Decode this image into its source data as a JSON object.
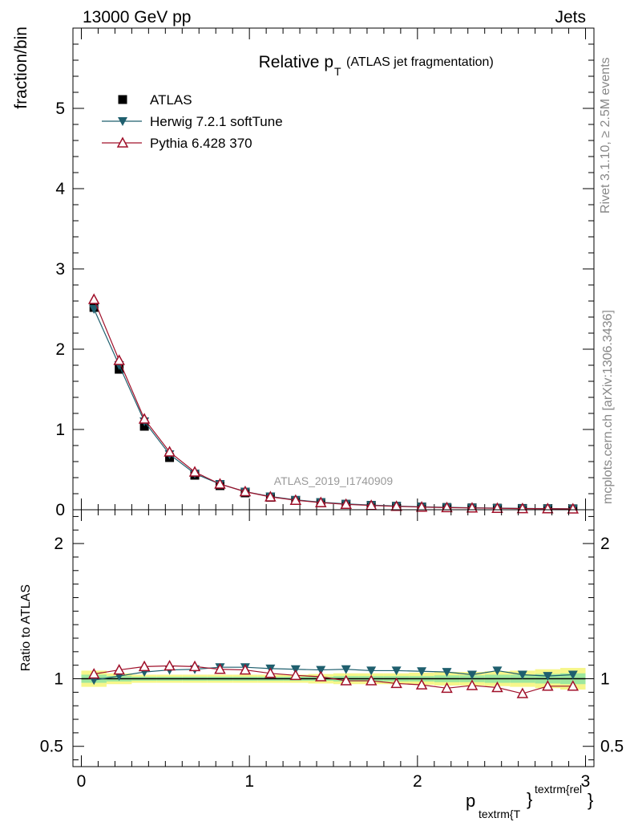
{
  "header": {
    "left_label": "13000 GeV pp",
    "right_label": "Jets"
  },
  "side_labels": {
    "rivet": "Rivet 3.1.10, ≥ 2.5M events",
    "mcplots": "mcplots.cern.ch [arXiv:1306.3436]"
  },
  "chart_data": [
    {
      "type": "scatter",
      "panel": "main",
      "title": "Relative p",
      "title_sub": "T",
      "title_rest": "(ATLAS jet fragmentation)",
      "ylabel": "fraction/bin",
      "watermark": "ATLAS_2019_I1740909",
      "xlim": [
        -0.05,
        3.05
      ],
      "ylim": [
        0,
        6.0
      ],
      "y_ticks": [
        0,
        1,
        2,
        3,
        4,
        5
      ],
      "y_tick_labels": [
        "0",
        "1",
        "2",
        "3",
        "4",
        "5"
      ],
      "x": [
        0.075,
        0.225,
        0.375,
        0.525,
        0.675,
        0.825,
        0.975,
        1.125,
        1.275,
        1.425,
        1.575,
        1.725,
        1.875,
        2.025,
        2.175,
        2.325,
        2.475,
        2.625,
        2.775,
        2.925
      ],
      "legend_position": "top-left",
      "series": [
        {
          "name": "ATLAS",
          "marker": "square",
          "color": "#000000",
          "values": [
            2.52,
            1.75,
            1.04,
            0.65,
            0.43,
            0.3,
            0.21,
            0.155,
            0.115,
            0.088,
            0.068,
            0.054,
            0.043,
            0.034,
            0.028,
            0.023,
            0.019,
            0.016,
            0.013,
            0.011
          ]
        },
        {
          "name": "Herwig 7.2.1 softTune",
          "marker": "triangle-down",
          "color": "#1f5f6e",
          "values": [
            2.5,
            1.8,
            1.1,
            0.69,
            0.45,
            0.32,
            0.225,
            0.165,
            0.123,
            0.094,
            0.073,
            0.058,
            0.046,
            0.036,
            0.03,
            0.024,
            0.02,
            0.017,
            0.014,
            0.012
          ]
        },
        {
          "name": "Pythia 6.428 370",
          "marker": "triangle-up-open",
          "color": "#a0102a",
          "values": [
            2.62,
            1.86,
            1.13,
            0.72,
            0.47,
            0.32,
            0.225,
            0.16,
            0.118,
            0.089,
            0.067,
            0.053,
            0.042,
            0.033,
            0.026,
            0.022,
            0.018,
            0.014,
            0.0125,
            0.01
          ]
        }
      ]
    },
    {
      "type": "scatter",
      "panel": "ratio",
      "ylabel": "Ratio to ATLAS",
      "xlabel_main": "p",
      "xlabel_sub": "textrm{T",
      "xlabel_sub_close": "}",
      "xlabel_sup": "textrm{rel",
      "xlabel_sup_close": "}",
      "xlim": [
        -0.05,
        3.05
      ],
      "ylim": [
        0.35,
        2.25
      ],
      "x_ticks": [
        0,
        1,
        2,
        3
      ],
      "x_tick_labels": [
        "0",
        "1",
        "2",
        "3"
      ],
      "y_ticks": [
        0.5,
        1,
        2
      ],
      "y_tick_labels": [
        "0.5",
        "1",
        "2"
      ],
      "x": [
        0.075,
        0.225,
        0.375,
        0.525,
        0.675,
        0.825,
        0.975,
        1.125,
        1.275,
        1.425,
        1.575,
        1.725,
        1.875,
        2.025,
        2.175,
        2.325,
        2.475,
        2.625,
        2.775,
        2.925
      ],
      "band_inner": [
        0.03,
        0.02,
        0.015,
        0.015,
        0.015,
        0.015,
        0.015,
        0.015,
        0.015,
        0.015,
        0.02,
        0.02,
        0.02,
        0.02,
        0.025,
        0.025,
        0.03,
        0.03,
        0.035,
        0.04
      ],
      "band_outer": [
        0.06,
        0.04,
        0.03,
        0.03,
        0.03,
        0.03,
        0.03,
        0.03,
        0.03,
        0.035,
        0.04,
        0.04,
        0.04,
        0.045,
        0.05,
        0.05,
        0.055,
        0.06,
        0.07,
        0.08
      ],
      "series": [
        {
          "name": "Herwig 7.2.1 softTune",
          "color": "#1f5f6e",
          "values": [
            0.99,
            1.02,
            1.05,
            1.065,
            1.07,
            1.085,
            1.085,
            1.075,
            1.07,
            1.065,
            1.07,
            1.06,
            1.06,
            1.055,
            1.05,
            1.03,
            1.06,
            1.03,
            1.02,
            1.03
          ]
        },
        {
          "name": "Pythia 6.428 370",
          "color": "#a0102a",
          "values": [
            1.035,
            1.065,
            1.09,
            1.095,
            1.09,
            1.07,
            1.065,
            1.04,
            1.025,
            1.015,
            0.985,
            0.985,
            0.965,
            0.955,
            0.93,
            0.95,
            0.935,
            0.89,
            0.945,
            0.945
          ]
        }
      ]
    }
  ]
}
